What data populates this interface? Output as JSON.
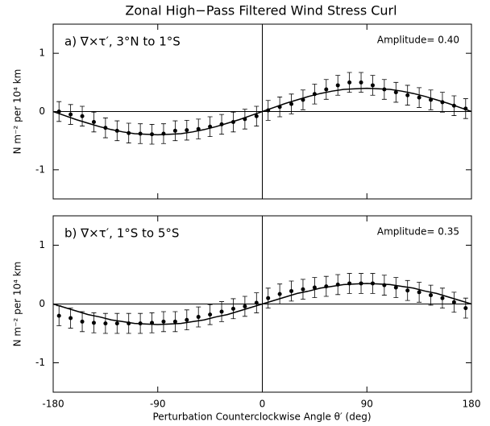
{
  "chart_data": [
    {
      "type": "scatter",
      "title": "Zonal High−Pass Filtered Wind Stress Curl",
      "panel_label": "a) ∇×τ′, 3°N to 1°S",
      "annotation": "Amplitude= 0.40",
      "ylabel": "N m⁻² per 10⁴ km",
      "xlim": [
        -180,
        180
      ],
      "xticks": [
        -180,
        -90,
        0,
        90,
        180
      ],
      "ylim": [
        -1.5,
        1.5
      ],
      "yticks": [
        -1,
        0,
        1
      ],
      "color": "#000000",
      "series": [
        {
          "kind": "points",
          "x": [
            -175,
            -165,
            -155,
            -145,
            -135,
            -125,
            -115,
            -105,
            -95,
            -85,
            -75,
            -65,
            -55,
            -45,
            -35,
            -25,
            -15,
            -5,
            5,
            15,
            25,
            35,
            45,
            55,
            65,
            75,
            85,
            95,
            105,
            115,
            125,
            135,
            145,
            155,
            165,
            175
          ],
          "values": [
            0.0,
            -0.05,
            -0.08,
            -0.18,
            -0.28,
            -0.33,
            -0.37,
            -0.38,
            -0.39,
            -0.38,
            -0.33,
            -0.32,
            -0.3,
            -0.26,
            -0.22,
            -0.18,
            -0.13,
            -0.08,
            0.02,
            0.08,
            0.13,
            0.2,
            0.3,
            0.38,
            0.45,
            0.5,
            0.5,
            0.45,
            0.38,
            0.33,
            0.28,
            0.24,
            0.2,
            0.16,
            0.1,
            0.05
          ],
          "errors": [
            0.17,
            0.17,
            0.17,
            0.17,
            0.17,
            0.17,
            0.17,
            0.17,
            0.17,
            0.17,
            0.17,
            0.17,
            0.17,
            0.17,
            0.17,
            0.17,
            0.17,
            0.17,
            0.17,
            0.17,
            0.17,
            0.17,
            0.17,
            0.17,
            0.17,
            0.17,
            0.17,
            0.17,
            0.17,
            0.17,
            0.17,
            0.17,
            0.17,
            0.17,
            0.17,
            0.17
          ]
        },
        {
          "kind": "line",
          "x": [
            -180,
            -170,
            -160,
            -150,
            -140,
            -130,
            -120,
            -110,
            -100,
            -90,
            -80,
            -70,
            -60,
            -50,
            -40,
            -30,
            -20,
            -10,
            0,
            10,
            20,
            30,
            40,
            50,
            60,
            70,
            80,
            90,
            100,
            110,
            120,
            130,
            140,
            150,
            160,
            170,
            180
          ],
          "values": [
            0,
            -0.07,
            -0.14,
            -0.2,
            -0.26,
            -0.31,
            -0.35,
            -0.38,
            -0.39,
            -0.4,
            -0.39,
            -0.38,
            -0.35,
            -0.31,
            -0.26,
            -0.2,
            -0.14,
            -0.07,
            0,
            0.07,
            0.14,
            0.2,
            0.26,
            0.31,
            0.35,
            0.38,
            0.39,
            0.4,
            0.39,
            0.38,
            0.35,
            0.31,
            0.26,
            0.2,
            0.14,
            0.07,
            0
          ]
        }
      ]
    },
    {
      "type": "scatter",
      "xlabel": "Perturbation Counterclockwise Angle θ′ (deg)",
      "panel_label": "b) ∇×τ′, 1°S to 5°S",
      "annotation": "Amplitude= 0.35",
      "ylabel": "N m⁻² per 10⁴ km",
      "xlim": [
        -180,
        180
      ],
      "xticks": [
        -180,
        -90,
        0,
        90,
        180
      ],
      "ylim": [
        -1.5,
        1.5
      ],
      "yticks": [
        -1,
        0,
        1
      ],
      "color": "#000000",
      "series": [
        {
          "kind": "points",
          "x": [
            -175,
            -165,
            -155,
            -145,
            -135,
            -125,
            -115,
            -105,
            -95,
            -85,
            -75,
            -65,
            -55,
            -45,
            -35,
            -25,
            -15,
            -5,
            5,
            15,
            25,
            35,
            45,
            55,
            65,
            75,
            85,
            95,
            105,
            115,
            125,
            135,
            145,
            155,
            165,
            175
          ],
          "values": [
            -0.2,
            -0.24,
            -0.3,
            -0.32,
            -0.33,
            -0.33,
            -0.33,
            -0.33,
            -0.32,
            -0.3,
            -0.3,
            -0.27,
            -0.22,
            -0.18,
            -0.13,
            -0.08,
            -0.04,
            0.02,
            0.1,
            0.17,
            0.22,
            0.25,
            0.28,
            0.3,
            0.33,
            0.35,
            0.35,
            0.35,
            0.32,
            0.28,
            0.23,
            0.2,
            0.15,
            0.1,
            0.03,
            -0.07
          ],
          "errors": [
            0.17,
            0.17,
            0.17,
            0.17,
            0.17,
            0.17,
            0.17,
            0.17,
            0.17,
            0.17,
            0.17,
            0.17,
            0.17,
            0.17,
            0.17,
            0.17,
            0.17,
            0.17,
            0.17,
            0.17,
            0.17,
            0.17,
            0.17,
            0.17,
            0.17,
            0.17,
            0.17,
            0.17,
            0.17,
            0.17,
            0.17,
            0.17,
            0.17,
            0.17,
            0.17,
            0.17
          ]
        },
        {
          "kind": "line",
          "x": [
            -180,
            -170,
            -160,
            -150,
            -140,
            -130,
            -120,
            -110,
            -100,
            -90,
            -80,
            -70,
            -60,
            -50,
            -40,
            -30,
            -20,
            -10,
            0,
            10,
            20,
            30,
            40,
            50,
            60,
            70,
            80,
            90,
            100,
            110,
            120,
            130,
            140,
            150,
            160,
            170,
            180
          ],
          "values": [
            0,
            -0.06,
            -0.12,
            -0.18,
            -0.22,
            -0.27,
            -0.3,
            -0.33,
            -0.34,
            -0.35,
            -0.34,
            -0.33,
            -0.3,
            -0.27,
            -0.22,
            -0.18,
            -0.12,
            -0.06,
            0,
            0.06,
            0.12,
            0.18,
            0.22,
            0.27,
            0.3,
            0.33,
            0.34,
            0.35,
            0.34,
            0.33,
            0.3,
            0.27,
            0.22,
            0.18,
            0.12,
            0.06,
            0
          ]
        }
      ]
    }
  ]
}
